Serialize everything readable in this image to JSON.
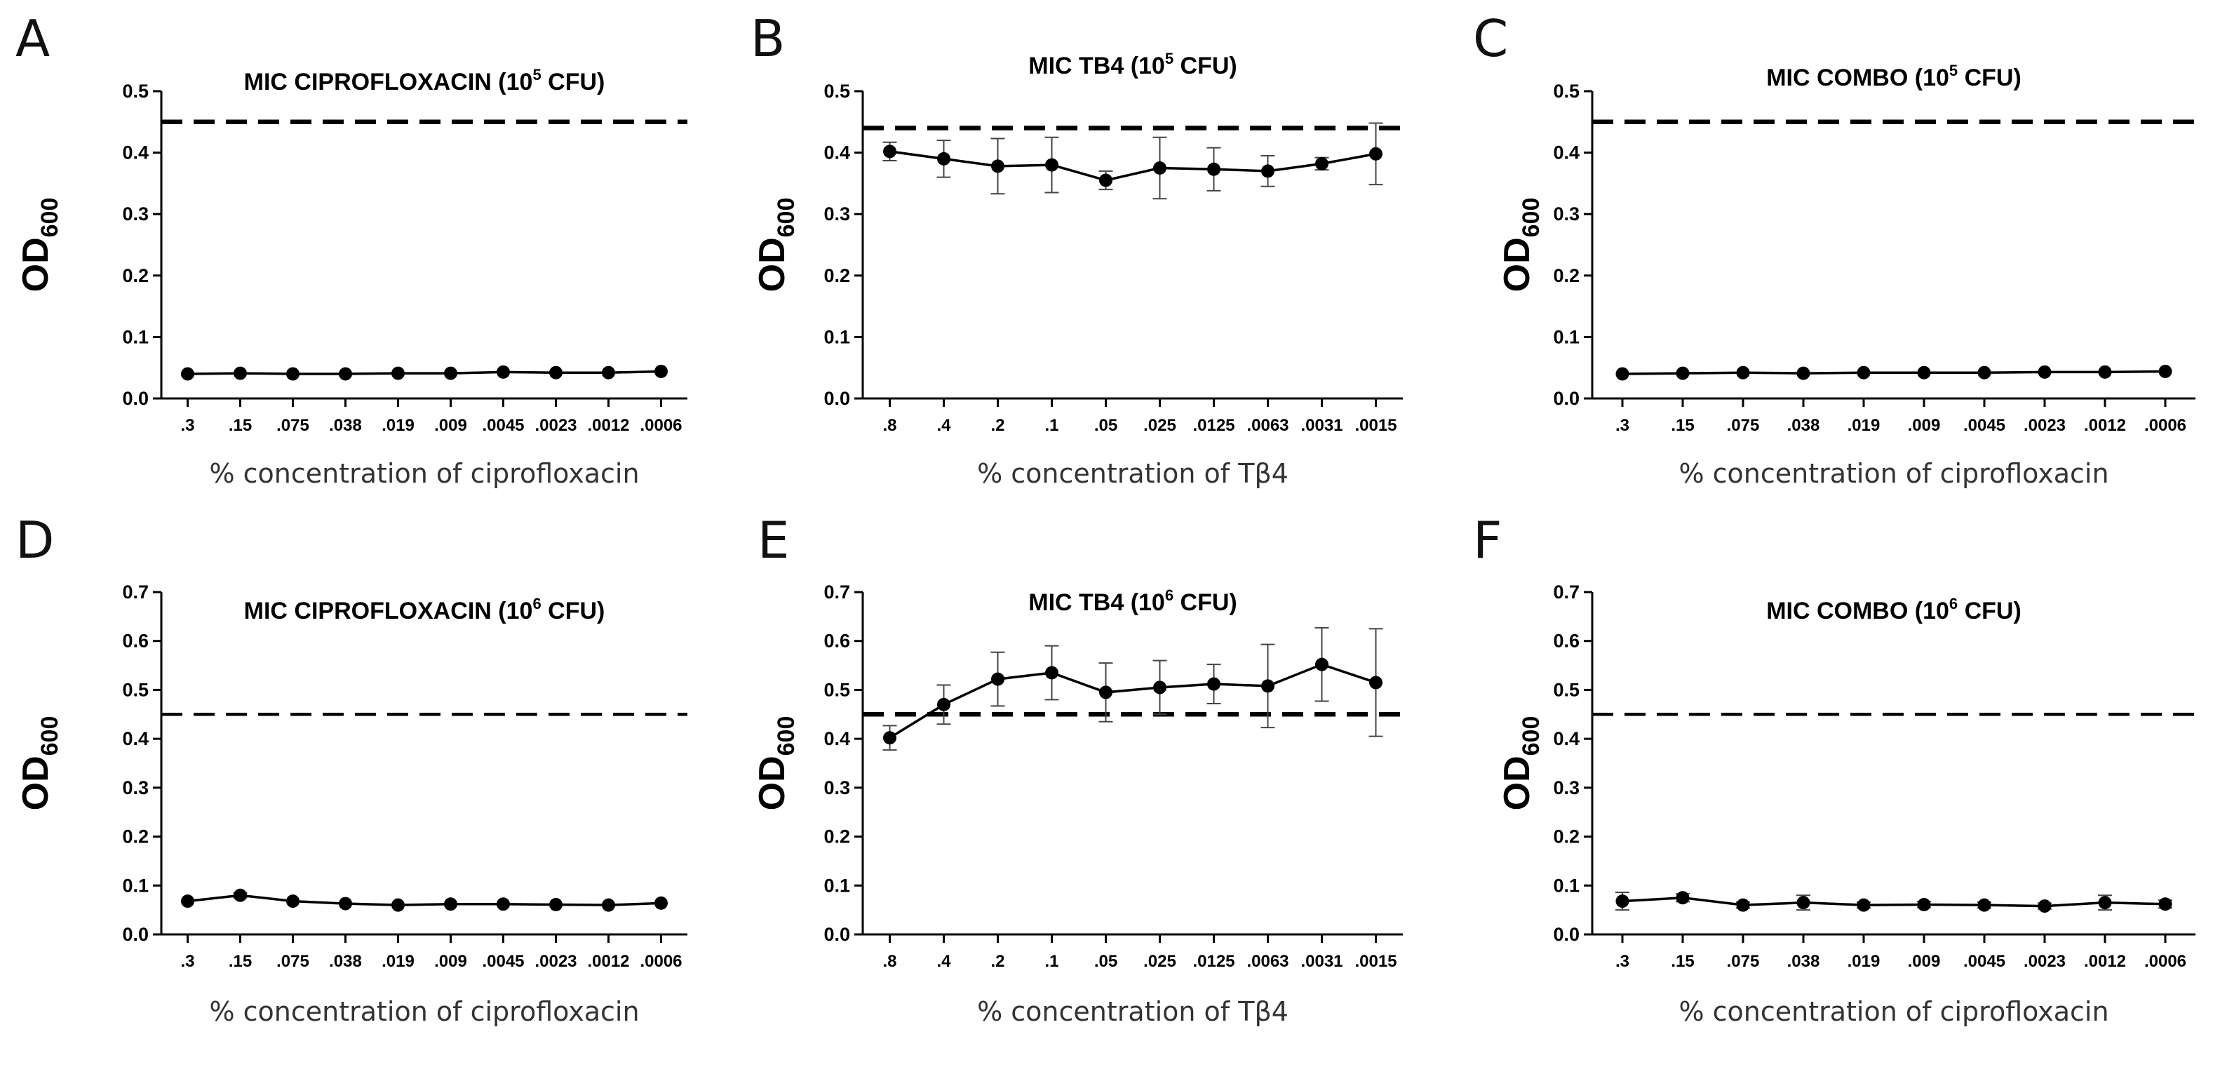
{
  "chart_data": [
    {
      "panel": "A",
      "type": "line",
      "title_main": "MIC CIPROFLOXACIN (10",
      "title_sup": "5",
      "title_end": " CFU)",
      "ylabel_main": "OD",
      "ylabel_sub": "600",
      "xlabel": "% concentration of ciprofloxacin",
      "ylim": [
        0,
        0.5
      ],
      "yticks": [
        "0.0",
        "0.1",
        "0.2",
        "0.3",
        "0.4",
        "0.5"
      ],
      "categories": [
        ".3",
        ".15",
        ".075",
        ".038",
        ".019",
        ".009",
        ".0045",
        ".0023",
        ".0012",
        ".0006"
      ],
      "values": [
        0.04,
        0.041,
        0.04,
        0.04,
        0.041,
        0.041,
        0.043,
        0.042,
        0.042,
        0.044
      ],
      "errors": [
        0.002,
        0.002,
        0.002,
        0.002,
        0.002,
        0.002,
        0.002,
        0.002,
        0.002,
        0.002
      ],
      "threshold": 0.45,
      "threshold_style": "thick"
    },
    {
      "panel": "B",
      "type": "line",
      "title_main": "MIC TB4 (10",
      "title_sup": "5",
      "title_end": " CFU)",
      "ylabel_main": "OD",
      "ylabel_sub": "600",
      "xlabel": "% concentration of Tβ4",
      "ylim": [
        0,
        0.5
      ],
      "yticks": [
        "0.0",
        "0.1",
        "0.2",
        "0.3",
        "0.4",
        "0.5"
      ],
      "categories": [
        ".8",
        ".4",
        ".2",
        ".1",
        ".05",
        ".025",
        ".0125",
        ".0063",
        ".0031",
        ".0015"
      ],
      "values": [
        0.402,
        0.39,
        0.378,
        0.38,
        0.355,
        0.375,
        0.373,
        0.37,
        0.382,
        0.398
      ],
      "errors": [
        0.015,
        0.03,
        0.045,
        0.045,
        0.015,
        0.05,
        0.035,
        0.025,
        0.01,
        0.05
      ],
      "threshold": 0.44,
      "threshold_style": "thick"
    },
    {
      "panel": "C",
      "type": "line",
      "title_main": "MIC COMBO (10",
      "title_sup": "5",
      "title_end": " CFU)",
      "ylabel_main": "OD",
      "ylabel_sub": "600",
      "xlabel": "% concentration of ciprofloxacin",
      "ylim": [
        0,
        0.5
      ],
      "yticks": [
        "0.0",
        "0.1",
        "0.2",
        "0.3",
        "0.4",
        "0.5"
      ],
      "categories": [
        ".3",
        ".15",
        ".075",
        ".038",
        ".019",
        ".009",
        ".0045",
        ".0023",
        ".0012",
        ".0006"
      ],
      "values": [
        0.04,
        0.041,
        0.042,
        0.041,
        0.042,
        0.042,
        0.042,
        0.043,
        0.043,
        0.044
      ],
      "errors": [
        0.002,
        0.002,
        0.002,
        0.002,
        0.002,
        0.002,
        0.002,
        0.002,
        0.002,
        0.002
      ],
      "threshold": 0.45,
      "threshold_style": "thick"
    },
    {
      "panel": "D",
      "type": "line",
      "title_main": "MIC CIPROFLOXACIN (10",
      "title_sup": "6",
      "title_end": " CFU)",
      "ylabel_main": "OD",
      "ylabel_sub": "600",
      "xlabel": "% concentration of ciprofloxacin",
      "ylim": [
        0,
        0.7
      ],
      "yticks": [
        "0.0",
        "0.1",
        "0.2",
        "0.3",
        "0.4",
        "0.5",
        "0.6",
        "0.7"
      ],
      "categories": [
        ".3",
        ".15",
        ".075",
        ".038",
        ".019",
        ".009",
        ".0045",
        ".0023",
        ".0012",
        ".0006"
      ],
      "values": [
        0.068,
        0.08,
        0.068,
        0.063,
        0.06,
        0.062,
        0.062,
        0.061,
        0.06,
        0.064
      ],
      "errors": [
        0.004,
        0.005,
        0.004,
        0.004,
        0.004,
        0.004,
        0.004,
        0.004,
        0.004,
        0.004
      ],
      "threshold": 0.45,
      "threshold_style": "thin"
    },
    {
      "panel": "E",
      "type": "line",
      "title_main": "MIC TB4 (10",
      "title_sup": "6",
      "title_end": " CFU)",
      "ylabel_main": "OD",
      "ylabel_sub": "600",
      "xlabel": "% concentration of Tβ4",
      "ylim": [
        0,
        0.7
      ],
      "yticks": [
        "0.0",
        "0.1",
        "0.2",
        "0.3",
        "0.4",
        "0.5",
        "0.6",
        "0.7"
      ],
      "categories": [
        ".8",
        ".4",
        ".2",
        ".1",
        ".05",
        ".025",
        ".0125",
        ".0063",
        ".0031",
        ".0015"
      ],
      "values": [
        0.402,
        0.47,
        0.522,
        0.535,
        0.495,
        0.505,
        0.512,
        0.508,
        0.552,
        0.515
      ],
      "errors": [
        0.025,
        0.04,
        0.055,
        0.055,
        0.06,
        0.055,
        0.04,
        0.085,
        0.075,
        0.11
      ],
      "threshold": 0.45,
      "threshold_style": "thick"
    },
    {
      "panel": "F",
      "type": "line",
      "title_main": "MIC COMBO (10",
      "title_sup": "6",
      "title_end": " CFU)",
      "ylabel_main": "OD",
      "ylabel_sub": "600",
      "xlabel": "% concentration of ciprofloxacin",
      "ylim": [
        0,
        0.7
      ],
      "yticks": [
        "0.0",
        "0.1",
        "0.2",
        "0.3",
        "0.4",
        "0.5",
        "0.6",
        "0.7"
      ],
      "categories": [
        ".3",
        ".15",
        ".075",
        ".038",
        ".019",
        ".009",
        ".0045",
        ".0023",
        ".0012",
        ".0006"
      ],
      "values": [
        0.068,
        0.075,
        0.06,
        0.065,
        0.06,
        0.061,
        0.06,
        0.058,
        0.065,
        0.062
      ],
      "errors": [
        0.018,
        0.008,
        0.006,
        0.015,
        0.006,
        0.006,
        0.006,
        0.006,
        0.015,
        0.008
      ],
      "threshold": 0.45,
      "threshold_style": "thin"
    }
  ]
}
